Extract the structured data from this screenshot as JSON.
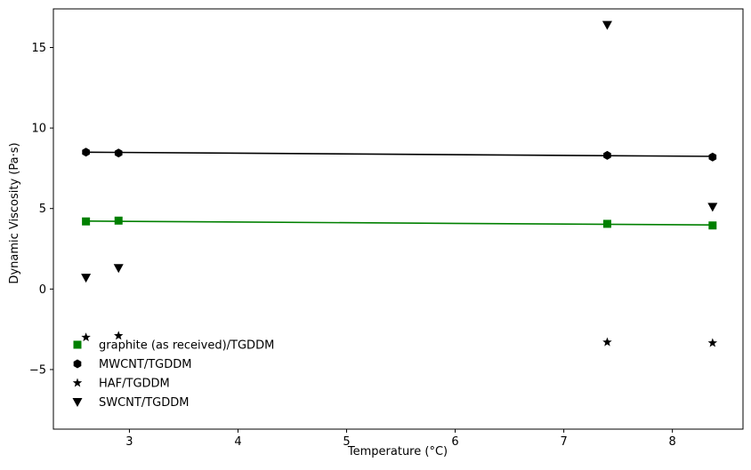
{
  "chart_data": {
    "type": "scatter",
    "title": "",
    "xlabel": "Temperature (°C)",
    "ylabel": "Dynamic Viscosity (Pa·s)",
    "xlim": [
      2.3,
      8.65
    ],
    "ylim": [
      -8.7,
      17.4
    ],
    "xticks": [
      3,
      4,
      5,
      6,
      7,
      8
    ],
    "yticks": [
      -5,
      0,
      5,
      10,
      15
    ],
    "xtick_labels": [
      "3",
      "4",
      "5",
      "6",
      "7",
      "8"
    ],
    "ytick_labels": [
      "−5",
      "0",
      "5",
      "10",
      "15"
    ],
    "grid": false,
    "legend_placement": "lower-left",
    "series": [
      {
        "name": "graphite (as received)/TGDDM",
        "color": "#008000",
        "marker": "square",
        "x": [
          2.6,
          2.9,
          7.4,
          8.37
        ],
        "y": [
          4.2,
          4.25,
          4.05,
          3.95
        ],
        "fit": {
          "x": [
            2.6,
            8.37
          ],
          "y": [
            4.22,
            3.98
          ]
        }
      },
      {
        "name": "MWCNT/TGDDM",
        "color": "#000000",
        "marker": "hexagon",
        "x": [
          2.6,
          2.9,
          7.4,
          8.37
        ],
        "y": [
          8.5,
          8.45,
          8.3,
          8.2
        ],
        "fit": {
          "x": [
            2.6,
            8.37
          ],
          "y": [
            8.5,
            8.24
          ]
        }
      },
      {
        "name": "HAF/TGDDM",
        "color": "#000000",
        "marker": "star",
        "x": [
          2.6,
          2.9,
          7.4,
          8.37
        ],
        "y": [
          -3.0,
          -2.9,
          -3.3,
          -3.35
        ]
      },
      {
        "name": "SWCNT/TGDDM",
        "color": "#000000",
        "marker": "triangle-down",
        "x": [
          2.6,
          2.9,
          7.4,
          8.37
        ],
        "y": [
          0.7,
          1.3,
          16.4,
          5.1
        ]
      }
    ]
  }
}
